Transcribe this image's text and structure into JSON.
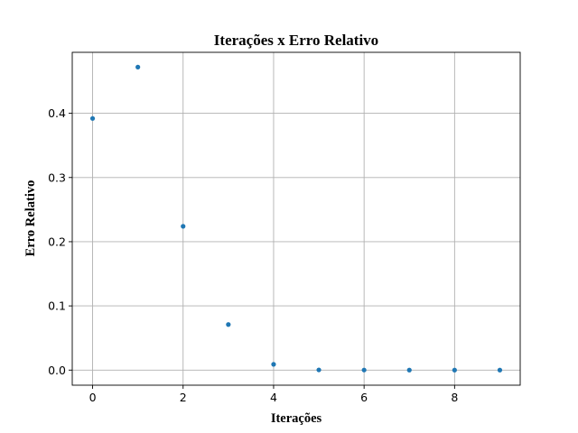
{
  "chart_data": {
    "type": "scatter",
    "title": "Iterações x Erro Relativo",
    "xlabel": "Iterações",
    "ylabel": "Erro Relativo",
    "x": [
      0,
      1,
      2,
      3,
      4,
      5,
      6,
      7,
      8,
      9
    ],
    "y": [
      0.392,
      0.472,
      0.224,
      0.071,
      0.009,
      0.0003,
      0.0001,
      0.0,
      0.0,
      0.0
    ],
    "xlim": [
      -0.45,
      9.45
    ],
    "ylim": [
      -0.0235,
      0.495
    ],
    "xticks": [
      0,
      2,
      4,
      6,
      8
    ],
    "xtick_labels": [
      "0",
      "2",
      "4",
      "6",
      "8"
    ],
    "yticks": [
      0.0,
      0.1,
      0.2,
      0.3,
      0.4
    ],
    "ytick_labels": [
      "0.0",
      "0.1",
      "0.2",
      "0.3",
      "0.4"
    ],
    "grid": true,
    "marker_color": "#1f77b4"
  }
}
